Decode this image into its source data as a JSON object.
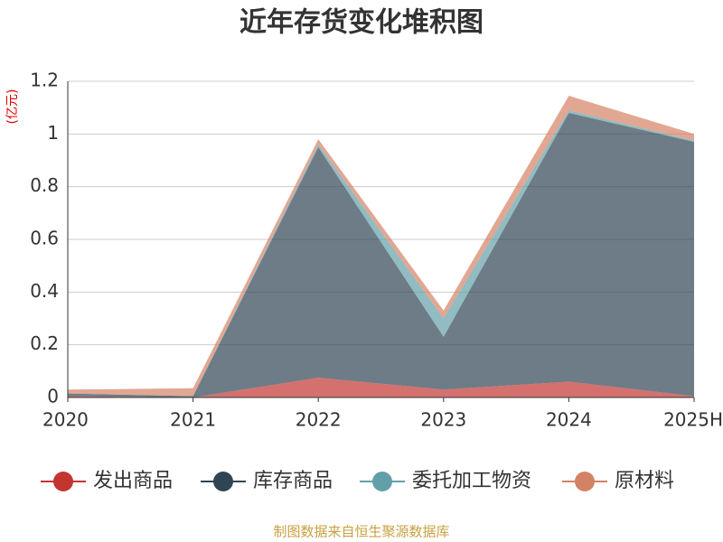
{
  "chart_data": {
    "type": "stacked_area",
    "title": "近年存货变化堆积图",
    "y_label": "(亿元)",
    "categories": [
      "2020",
      "2021",
      "2022",
      "2023",
      "2024",
      "2025H"
    ],
    "series": [
      {
        "name": "发出商品",
        "color": "#c23531",
        "values": [
          0.005,
          0,
          0.075,
          0.03,
          0.06,
          0.005
        ]
      },
      {
        "name": "库存商品",
        "color": "#2f4554",
        "values": [
          0.01,
          0.005,
          0.875,
          0.2,
          1.02,
          0.965
        ]
      },
      {
        "name": "委托加工物资",
        "color": "#61a0a8",
        "values": [
          0,
          0,
          0.01,
          0.07,
          0.01,
          0.005
        ]
      },
      {
        "name": "原材料",
        "color": "#d48265",
        "values": [
          0.015,
          0.03,
          0.02,
          0.03,
          0.055,
          0.025
        ]
      }
    ],
    "ylim": [
      0,
      1.2
    ],
    "yticks": [
      0,
      0.2,
      0.4,
      0.6,
      0.8,
      1,
      1.2
    ],
    "grid": true,
    "source": "制图数据来自恒生聚源数据库"
  }
}
